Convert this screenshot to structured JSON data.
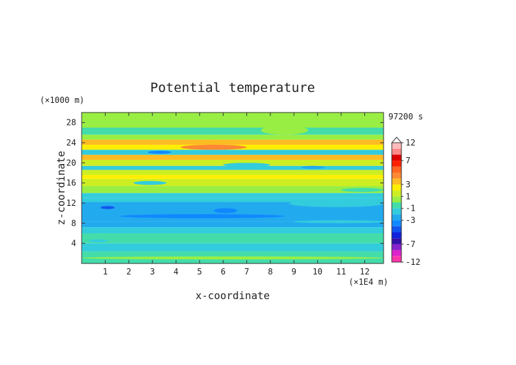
{
  "chart_data": {
    "type": "heatmap",
    "title": "Potential temperature",
    "xlabel": "x-coordinate",
    "ylabel": "z-coordinate",
    "x_unit": "(×1E4 m)",
    "y_unit": "(×1000 m)",
    "time_label": "97200 s",
    "xlim": [
      0,
      12.8
    ],
    "ylim": [
      0,
      30
    ],
    "x_ticks": [
      1,
      2,
      3,
      4,
      5,
      6,
      7,
      8,
      9,
      10,
      11,
      12
    ],
    "y_ticks": [
      4,
      8,
      12,
      16,
      20,
      24,
      28
    ],
    "colorbar": {
      "levels": [
        -12,
        -10,
        -8,
        -7,
        -6,
        -5,
        -4,
        -3,
        -2,
        -1,
        0,
        1,
        2,
        3,
        4,
        5,
        6,
        7,
        8,
        10,
        12
      ],
      "labels": [
        12,
        7,
        3,
        1,
        -1,
        -3,
        -7,
        -12
      ],
      "colors": [
        "#ff33aa",
        "#dd22cc",
        "#8822cc",
        "#3311aa",
        "#1122dd",
        "#1155ee",
        "#1188ff",
        "#22aaee",
        "#33ccdd",
        "#44ddaa",
        "#99ee44",
        "#ccee22",
        "#ffee00",
        "#ffbb22",
        "#ff8833",
        "#ff6622",
        "#ff2200",
        "#dd0000",
        "#ff8888",
        "#ffbbbb"
      ]
    },
    "bands": [
      {
        "z": [
          0,
          2.4
        ],
        "level": -0.3
      },
      {
        "z": [
          2.4,
          4.0
        ],
        "level": -1.3
      },
      {
        "z": [
          4.0,
          6.0
        ],
        "level": -0.5
      },
      {
        "z": [
          6.0,
          7.2
        ],
        "level": -1.3
      },
      {
        "z": [
          7.2,
          8.4
        ],
        "level": -2.2
      },
      {
        "z": [
          8.4,
          12.2
        ],
        "level": -3.0
      },
      {
        "z": [
          12.2,
          13.0
        ],
        "level": -2.0
      },
      {
        "z": [
          13.0,
          14.0
        ],
        "level": -1.2
      },
      {
        "z": [
          14.0,
          15.4
        ],
        "level": 0.5
      },
      {
        "z": [
          15.4,
          16.8
        ],
        "level": 1.5
      },
      {
        "z": [
          16.8,
          17.6
        ],
        "level": 2.5
      },
      {
        "z": [
          17.6,
          18.6
        ],
        "level": 1.2
      },
      {
        "z": [
          18.6,
          19.4
        ],
        "level": -1.2
      },
      {
        "z": [
          19.4,
          20.6
        ],
        "level": 1.5
      },
      {
        "z": [
          20.6,
          21.6
        ],
        "level": 3.5
      },
      {
        "z": [
          21.6,
          22.6
        ],
        "level": -1.2
      },
      {
        "z": [
          22.6,
          23.6
        ],
        "level": 2.5
      },
      {
        "z": [
          23.6,
          24.6
        ],
        "level": 3.5
      },
      {
        "z": [
          24.6,
          25.6
        ],
        "level": 0.5
      },
      {
        "z": [
          25.6,
          27.0
        ],
        "level": -0.4
      },
      {
        "z": [
          27.0,
          30.0
        ],
        "level": 0.5
      }
    ],
    "features": [
      {
        "x": [
          4.2,
          7.0
        ],
        "z": [
          22.6,
          23.6
        ],
        "level": 4.5
      },
      {
        "x": [
          6.0,
          8.0
        ],
        "z": [
          19.2,
          20.0
        ],
        "level": -2.0
      },
      {
        "x": [
          2.8,
          3.8
        ],
        "z": [
          21.8,
          22.4
        ],
        "level": -3.5
      },
      {
        "x": [
          9.3,
          10.3
        ],
        "z": [
          18.8,
          19.4
        ],
        "level": -2.5
      },
      {
        "x": [
          0.8,
          1.4
        ],
        "z": [
          10.8,
          11.4
        ],
        "level": -4.5
      },
      {
        "x": [
          1.6,
          8.6
        ],
        "z": [
          9.0,
          9.8
        ],
        "level": -4.0
      },
      {
        "x": [
          5.6,
          6.6
        ],
        "z": [
          10.0,
          11.0
        ],
        "level": -3.8
      },
      {
        "x": [
          8.8,
          12.8
        ],
        "z": [
          11.2,
          12.6
        ],
        "level": -2.0
      },
      {
        "x": [
          9.0,
          12.8
        ],
        "z": [
          8.0,
          8.6
        ],
        "level": -2.0
      },
      {
        "x": [
          0.3,
          1.1
        ],
        "z": [
          4.2,
          4.8
        ],
        "level": -1.3
      },
      {
        "x": [
          2.2,
          4.2
        ],
        "z": [
          3.0,
          3.8
        ],
        "level": -1.5
      },
      {
        "x": [
          9.1,
          11.3
        ],
        "z": [
          2.6,
          3.4
        ],
        "level": -1.4
      },
      {
        "x": [
          0.0,
          12.8
        ],
        "z": [
          0.8,
          1.4
        ],
        "level": 0.5
      },
      {
        "x": [
          7.6,
          9.6
        ],
        "z": [
          25.6,
          27.4
        ],
        "level": 0.5
      },
      {
        "x": [
          2.2,
          3.6
        ],
        "z": [
          15.6,
          16.4
        ],
        "level": -1.2
      },
      {
        "x": [
          11.0,
          12.8
        ],
        "z": [
          14.2,
          15.0
        ],
        "level": -0.5
      }
    ]
  }
}
